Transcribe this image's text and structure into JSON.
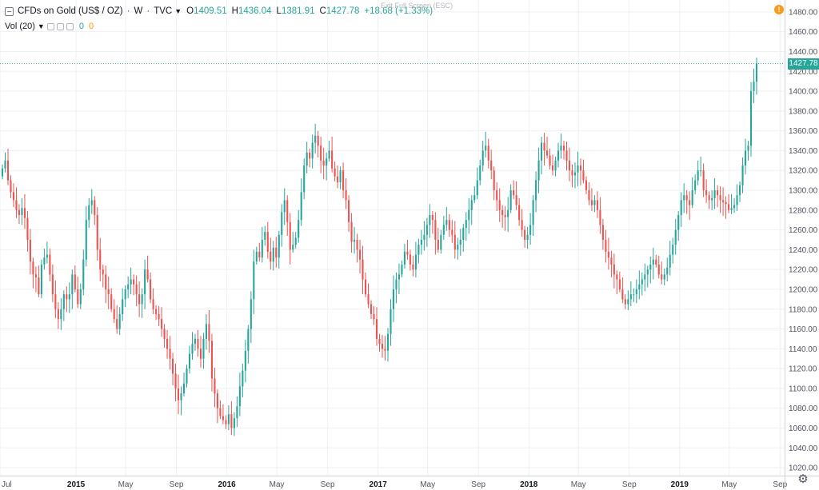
{
  "header": {
    "symbol": "CFDs on Gold (US$ / OZ)",
    "interval": "W",
    "exchange": "TVC",
    "open_label": "O",
    "open": "1409.51",
    "high_label": "H",
    "high": "1436.04",
    "low_label": "L",
    "low": "1381.91",
    "close_label": "C",
    "close": "1427.78",
    "change": "+18.68 (+1.33%)"
  },
  "volume_indicator": {
    "label": "Vol (20)",
    "value_1": "0",
    "value_2": "0"
  },
  "exit_fullscreen_text": "Exit Full Screen (ESC)",
  "warning_glyph": "!",
  "last_price_tag": "1427.78",
  "settings_icon": "gear-icon",
  "colors": {
    "up": "#26a69a",
    "down": "#ef5350",
    "grid": "#eef0f3",
    "axis_text": "#50535e",
    "last_line": "#26a69a"
  },
  "chart_data": {
    "type": "candlestick",
    "y_axis": {
      "min": 1012,
      "max": 1492,
      "ticks": [
        1480,
        1460,
        1440,
        1420,
        1400,
        1380,
        1360,
        1340,
        1320,
        1300,
        1280,
        1260,
        1240,
        1220,
        1200,
        1180,
        1160,
        1140,
        1120,
        1100,
        1080,
        1060,
        1040,
        1020
      ],
      "tick_labels": [
        "1480.00",
        "1460.00",
        "1440.00",
        "1420.00",
        "1400.00",
        "1380.00",
        "1360.00",
        "1340.00",
        "1320.00",
        "1300.00",
        "1280.00",
        "1260.00",
        "1240.00",
        "1220.00",
        "1200.00",
        "1180.00",
        "1160.00",
        "1140.00",
        "1120.00",
        "1100.00",
        "1080.00",
        "1060.00",
        "1040.00",
        "1020.00"
      ]
    },
    "x_axis": {
      "start": "2014-07-01",
      "end": "2019-09-12",
      "tick_dates": [
        "2014-07-01",
        "2015-01-01",
        "2015-05-01",
        "2015-09-01",
        "2016-01-01",
        "2016-05-01",
        "2016-09-01",
        "2017-01-01",
        "2017-05-01",
        "2017-09-01",
        "2018-01-01",
        "2018-05-01",
        "2018-09-01",
        "2019-01-01",
        "2019-05-01",
        "2019-09-01"
      ],
      "tick_labels": [
        "Jul",
        "2015",
        "May",
        "Sep",
        "2016",
        "May",
        "Sep",
        "2017",
        "May",
        "Sep",
        "2018",
        "May",
        "Sep",
        "2019",
        "May",
        "Sep"
      ],
      "bold": [
        false,
        true,
        false,
        false,
        true,
        false,
        false,
        true,
        false,
        false,
        true,
        false,
        false,
        true,
        false,
        false
      ]
    },
    "grid": true,
    "last_price": 1427.78,
    "closes": [
      1322,
      1330,
      1310,
      1298,
      1290,
      1280,
      1275,
      1282,
      1272,
      1250,
      1228,
      1215,
      1212,
      1195,
      1225,
      1232,
      1235,
      1215,
      1195,
      1180,
      1170,
      1180,
      1195,
      1190,
      1195,
      1215,
      1200,
      1185,
      1200,
      1230,
      1270,
      1285,
      1290,
      1275,
      1240,
      1220,
      1215,
      1200,
      1195,
      1180,
      1170,
      1160,
      1175,
      1190,
      1200,
      1205,
      1210,
      1205,
      1195,
      1185,
      1195,
      1220,
      1210,
      1190,
      1180,
      1175,
      1170,
      1160,
      1150,
      1140,
      1130,
      1115,
      1100,
      1088,
      1095,
      1105,
      1120,
      1135,
      1145,
      1150,
      1140,
      1130,
      1150,
      1165,
      1148,
      1110,
      1095,
      1080,
      1072,
      1068,
      1064,
      1074,
      1060,
      1070,
      1082,
      1102,
      1118,
      1138,
      1160,
      1190,
      1228,
      1238,
      1232,
      1250,
      1258,
      1238,
      1228,
      1242,
      1232,
      1255,
      1278,
      1290,
      1268,
      1240,
      1245,
      1252,
      1270,
      1298,
      1325,
      1338,
      1332,
      1348,
      1355,
      1345,
      1330,
      1325,
      1332,
      1340,
      1322,
      1314,
      1308,
      1320,
      1300,
      1290,
      1268,
      1248,
      1250,
      1240,
      1230,
      1210,
      1195,
      1185,
      1175,
      1170,
      1150,
      1145,
      1140,
      1138,
      1155,
      1180,
      1200,
      1210,
      1215,
      1225,
      1238,
      1235,
      1225,
      1220,
      1235,
      1245,
      1250,
      1255,
      1265,
      1275,
      1270,
      1250,
      1240,
      1255,
      1265,
      1270,
      1260,
      1255,
      1240,
      1245,
      1250,
      1262,
      1270,
      1280,
      1290,
      1295,
      1310,
      1325,
      1340,
      1345,
      1330,
      1320,
      1300,
      1290,
      1280,
      1275,
      1273,
      1280,
      1300,
      1295,
      1285,
      1270,
      1260,
      1250,
      1255,
      1265,
      1290,
      1310,
      1330,
      1348,
      1340,
      1335,
      1325,
      1320,
      1330,
      1340,
      1345,
      1340,
      1330,
      1320,
      1315,
      1318,
      1325,
      1320,
      1310,
      1300,
      1290,
      1285,
      1290,
      1280,
      1265,
      1250,
      1238,
      1232,
      1225,
      1215,
      1210,
      1200,
      1190,
      1185,
      1190,
      1195,
      1195,
      1200,
      1205,
      1210,
      1215,
      1220,
      1225,
      1230,
      1225,
      1215,
      1210,
      1215,
      1222,
      1235,
      1245,
      1260,
      1275,
      1290,
      1295,
      1290,
      1285,
      1300,
      1310,
      1320,
      1320,
      1300,
      1295,
      1290,
      1292,
      1300,
      1295,
      1290,
      1288,
      1286,
      1280,
      1282,
      1285,
      1295,
      1305,
      1325,
      1340,
      1345,
      1400,
      1409.51,
      1427.78
    ]
  }
}
